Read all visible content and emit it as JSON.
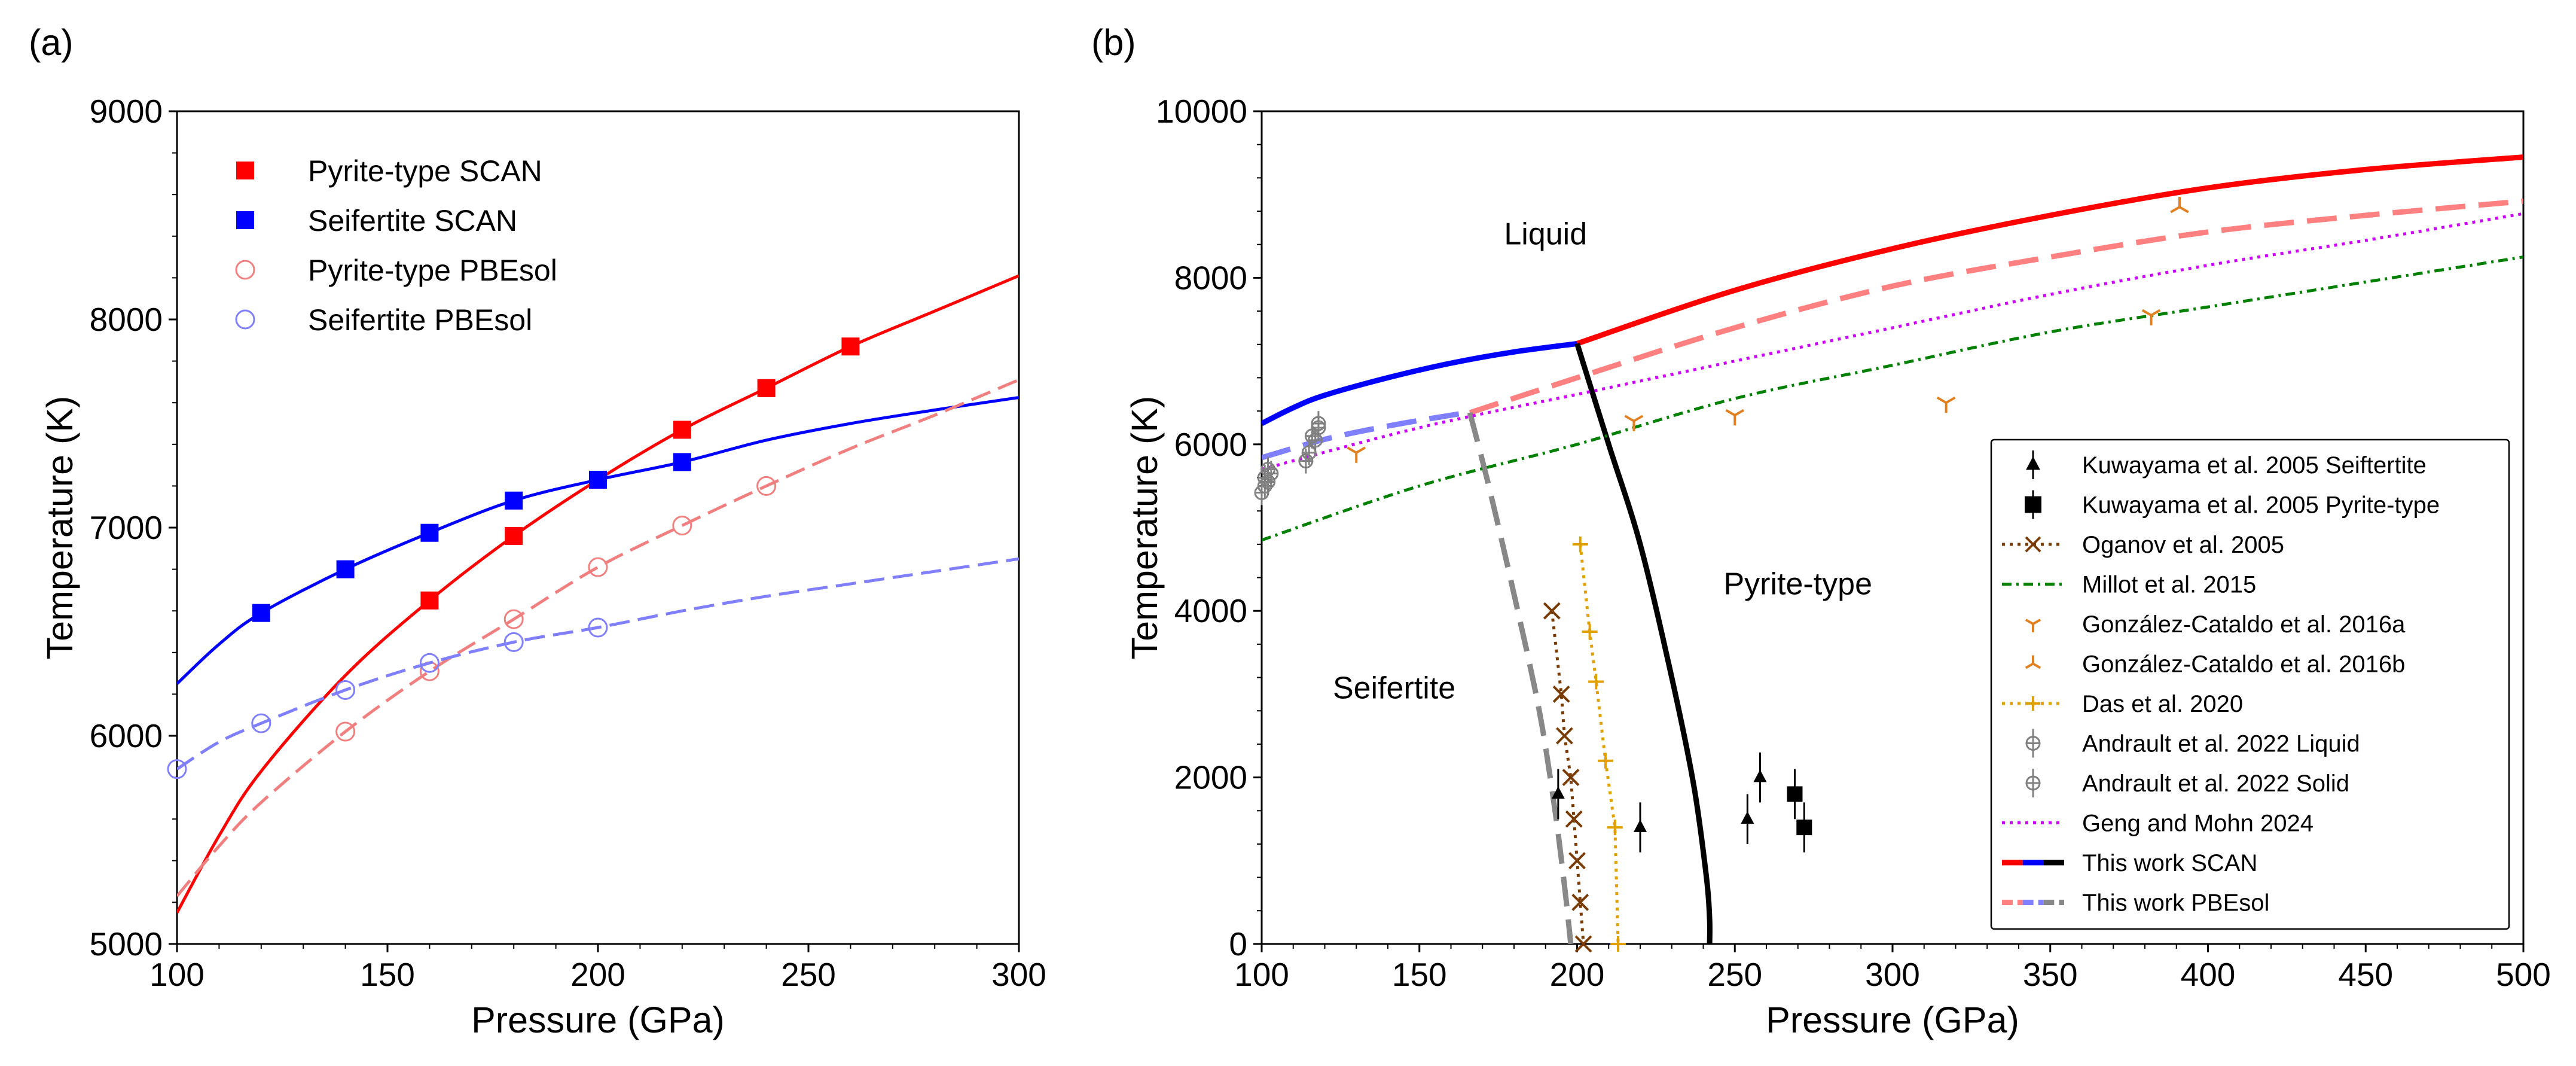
{
  "chart_data": [
    {
      "panel": "(a)",
      "type": "line",
      "xlabel": "Pressure (GPa)",
      "ylabel": "Temperature (K)",
      "xlim": [
        100,
        300
      ],
      "ylim": [
        5000,
        9000
      ],
      "xticks": [
        100,
        150,
        200,
        250,
        300
      ],
      "yticks": [
        5000,
        6000,
        7000,
        8000,
        9000
      ],
      "legend_position": "top-left",
      "series": [
        {
          "name": "Pyrite-type SCAN",
          "color": "#ff0000",
          "marker": "square-filled",
          "dash": "solid",
          "points": [
            [
              160,
              6650
            ],
            [
              180,
              6960
            ],
            [
              220,
              7470
            ],
            [
              240,
              7670
            ],
            [
              260,
              7870
            ]
          ],
          "curve": [
            [
              100,
              5150
            ],
            [
              110,
              5520
            ],
            [
              120,
              5830
            ],
            [
              140,
              6290
            ],
            [
              160,
              6650
            ],
            [
              180,
              6960
            ],
            [
              200,
              7230
            ],
            [
              220,
              7470
            ],
            [
              240,
              7670
            ],
            [
              260,
              7870
            ],
            [
              280,
              8040
            ],
            [
              300,
              8210
            ]
          ]
        },
        {
          "name": "Seifertite SCAN",
          "color": "#0000ff",
          "marker": "square-filled",
          "dash": "solid",
          "points": [
            [
              120,
              6590
            ],
            [
              140,
              6800
            ],
            [
              160,
              6975
            ],
            [
              180,
              7130
            ],
            [
              200,
              7230
            ],
            [
              220,
              7315
            ]
          ],
          "curve": [
            [
              100,
              6250
            ],
            [
              110,
              6440
            ],
            [
              120,
              6590
            ],
            [
              140,
              6800
            ],
            [
              160,
              6975
            ],
            [
              180,
              7130
            ],
            [
              200,
              7230
            ],
            [
              220,
              7315
            ],
            [
              240,
              7420
            ],
            [
              260,
              7500
            ],
            [
              280,
              7565
            ],
            [
              300,
              7625
            ]
          ]
        },
        {
          "name": "Pyrite-type PBEsol",
          "color": "#f08080",
          "marker": "circle-open",
          "dash": "dashed",
          "points": [
            [
              140,
              6020
            ],
            [
              160,
              6310
            ],
            [
              180,
              6560
            ],
            [
              200,
              6810
            ],
            [
              220,
              7010
            ],
            [
              240,
              7200
            ]
          ],
          "curve": [
            [
              100,
              5230
            ],
            [
              110,
              5470
            ],
            [
              120,
              5680
            ],
            [
              140,
              6020
            ],
            [
              160,
              6310
            ],
            [
              180,
              6560
            ],
            [
              200,
              6810
            ],
            [
              220,
              7010
            ],
            [
              240,
              7200
            ],
            [
              260,
              7380
            ],
            [
              280,
              7540
            ],
            [
              300,
              7710
            ]
          ]
        },
        {
          "name": "Seifertite PBEsol",
          "color": "#8080ff",
          "marker": "circle-open",
          "dash": "dashed",
          "points": [
            [
              100,
              5840
            ],
            [
              120,
              6060
            ],
            [
              140,
              6220
            ],
            [
              160,
              6350
            ],
            [
              180,
              6450
            ],
            [
              200,
              6520
            ]
          ],
          "curve": [
            [
              100,
              5840
            ],
            [
              110,
              5970
            ],
            [
              120,
              6060
            ],
            [
              140,
              6220
            ],
            [
              160,
              6350
            ],
            [
              180,
              6450
            ],
            [
              200,
              6520
            ],
            [
              220,
              6600
            ],
            [
              240,
              6670
            ],
            [
              260,
              6730
            ],
            [
              280,
              6790
            ],
            [
              300,
              6850
            ]
          ]
        }
      ]
    },
    {
      "panel": "(b)",
      "type": "line",
      "xlabel": "Pressure (GPa)",
      "ylabel": "Temperature (K)",
      "xlim": [
        100,
        500
      ],
      "ylim": [
        0,
        10000
      ],
      "xticks": [
        100,
        150,
        200,
        250,
        300,
        350,
        400,
        450,
        500
      ],
      "yticks": [
        0,
        2000,
        4000,
        6000,
        8000,
        10000
      ],
      "legend_position": "bottom-right",
      "region_labels": [
        {
          "text": "Liquid",
          "x": 190,
          "y": 8400
        },
        {
          "text": "Pyrite-type",
          "x": 270,
          "y": 4200
        },
        {
          "text": "Seifertite",
          "x": 142,
          "y": 2950
        }
      ],
      "legend": [
        "Kuwayama et al. 2005 Seiftertite",
        "Kuwayama et al. 2005 Pyrite-type",
        "Oganov et al. 2005",
        "Millot et al. 2015",
        "González-Cataldo et al. 2016a",
        "González-Cataldo et al. 2016b",
        "Das et al. 2020",
        "Andrault et al. 2022 Liquid",
        "Andrault et al. 2022 Solid",
        "Geng and Mohn 2024",
        "This work SCAN",
        "This work PBEsol"
      ],
      "series": [
        {
          "name": "This work SCAN (seifertite melting)",
          "color": "#0000ff",
          "dash": "solid",
          "curve": [
            [
              100,
              6250
            ],
            [
              110,
              6440
            ],
            [
              120,
              6590
            ],
            [
              140,
              6800
            ],
            [
              160,
              6975
            ],
            [
              180,
              7110
            ],
            [
              200,
              7210
            ]
          ]
        },
        {
          "name": "This work SCAN (pyrite-type melting)",
          "color": "#ff0000",
          "dash": "solid",
          "curve": [
            [
              200,
              7210
            ],
            [
              250,
              7850
            ],
            [
              300,
              8350
            ],
            [
              350,
              8750
            ],
            [
              400,
              9080
            ],
            [
              450,
              9300
            ],
            [
              500,
              9450
            ]
          ]
        },
        {
          "name": "This work SCAN (solid boundary)",
          "color": "#000000",
          "dash": "solid",
          "curve": [
            [
              200,
              7210
            ],
            [
              210,
              6000
            ],
            [
              220,
              4800
            ],
            [
              230,
              3200
            ],
            [
              237,
              1900
            ],
            [
              241,
              800
            ],
            [
              242,
              300
            ],
            [
              242,
              0
            ]
          ]
        },
        {
          "name": "This work PBEsol (seifertite melting)",
          "color": "#8080ff",
          "dash": "dashed",
          "curve": [
            [
              100,
              5840
            ],
            [
              120,
              6060
            ],
            [
              140,
              6220
            ],
            [
              160,
              6350
            ],
            [
              166,
              6380
            ]
          ]
        },
        {
          "name": "This work PBEsol (pyrite-type melting)",
          "color": "#ff8080",
          "dash": "dashed",
          "curve": [
            [
              166,
              6380
            ],
            [
              200,
              6800
            ],
            [
              250,
              7400
            ],
            [
              300,
              7900
            ],
            [
              350,
              8250
            ],
            [
              400,
              8550
            ],
            [
              450,
              8750
            ],
            [
              500,
              8920
            ]
          ]
        },
        {
          "name": "This work PBEsol (solid boundary)",
          "color": "#888888",
          "dash": "dashed",
          "curve": [
            [
              166,
              6380
            ],
            [
              172,
              5500
            ],
            [
              180,
              4200
            ],
            [
              188,
              2800
            ],
            [
              193,
              1600
            ],
            [
              196,
              700
            ],
            [
              198,
              0
            ]
          ]
        },
        {
          "name": "Geng and Mohn 2024",
          "color": "#cc00ff",
          "dash": "dotted",
          "curve": [
            [
              100,
              5700
            ],
            [
              150,
              6200
            ],
            [
              200,
              6600
            ],
            [
              250,
              7000
            ],
            [
              300,
              7400
            ],
            [
              350,
              7800
            ],
            [
              400,
              8150
            ],
            [
              450,
              8450
            ],
            [
              500,
              8770
            ]
          ]
        },
        {
          "name": "Millot et al. 2015",
          "color": "#008000",
          "dash": "dashdot",
          "curve": [
            [
              100,
              4850
            ],
            [
              150,
              5500
            ],
            [
              200,
              6000
            ],
            [
              250,
              6550
            ],
            [
              300,
              6950
            ],
            [
              350,
              7350
            ],
            [
              400,
              7650
            ],
            [
              450,
              7950
            ],
            [
              500,
              8250
            ]
          ]
        },
        {
          "name": "Oganov et al. 2005",
          "color": "#7a3b00",
          "dash": "dotted",
          "marker": "x",
          "points": [
            [
              192,
              4000
            ],
            [
              195,
              3000
            ],
            [
              196,
              2500
            ],
            [
              198,
              2000
            ],
            [
              199,
              1500
            ],
            [
              200,
              1000
            ],
            [
              201,
              500
            ],
            [
              202,
              0
            ]
          ]
        },
        {
          "name": "Das et al. 2020",
          "color": "#e0a000",
          "dash": "dotted",
          "marker": "plus",
          "points": [
            [
              201,
              4800
            ],
            [
              204,
              3750
            ],
            [
              206,
              3150
            ],
            [
              209,
              2200
            ],
            [
              212,
              1400
            ],
            [
              213,
              0
            ]
          ]
        },
        {
          "name": "González-Cataldo et al. 2016a",
          "color": "#e08020",
          "marker": "tri-down",
          "points": [
            [
              130,
              5900
            ],
            [
              218,
              6280
            ],
            [
              250,
              6350
            ],
            [
              317,
              6500
            ],
            [
              382,
              7550
            ]
          ]
        },
        {
          "name": "González-Cataldo et al. 2016b",
          "color": "#e08020",
          "marker": "tri-up",
          "points": [
            [
              391,
              8850
            ]
          ]
        },
        {
          "name": "Kuwayama et al. 2005 Seiftertite",
          "color": "#000000",
          "marker": "triangle-up",
          "errorbar": 300,
          "points": [
            [
              194,
              1800
            ],
            [
              220,
              1400
            ],
            [
              254,
              1500
            ],
            [
              258,
              2000
            ]
          ]
        },
        {
          "name": "Kuwayama et al. 2005 Pyrite-type",
          "color": "#000000",
          "marker": "square-filled",
          "errorbar": 300,
          "points": [
            [
              269,
              1800
            ],
            [
              272,
              1400
            ]
          ]
        },
        {
          "name": "Andrault et al. 2022 Liquid",
          "color": "#808080",
          "marker": "circle-cross",
          "errorbar": 150,
          "points": [
            [
              101,
              5500
            ],
            [
              102,
              5550
            ],
            [
              103,
              5650
            ],
            [
              115,
              5900
            ],
            [
              117,
              6050
            ],
            [
              118,
              6250
            ]
          ]
        },
        {
          "name": "Andrault et al. 2022 Solid",
          "color": "#808080",
          "marker": "circle-cross",
          "errorbar": 150,
          "points": [
            [
              100,
              5420
            ],
            [
              101,
              5600
            ],
            [
              102,
              5700
            ],
            [
              114,
              5800
            ],
            [
              116,
              6100
            ],
            [
              118,
              6200
            ]
          ]
        }
      ]
    }
  ]
}
